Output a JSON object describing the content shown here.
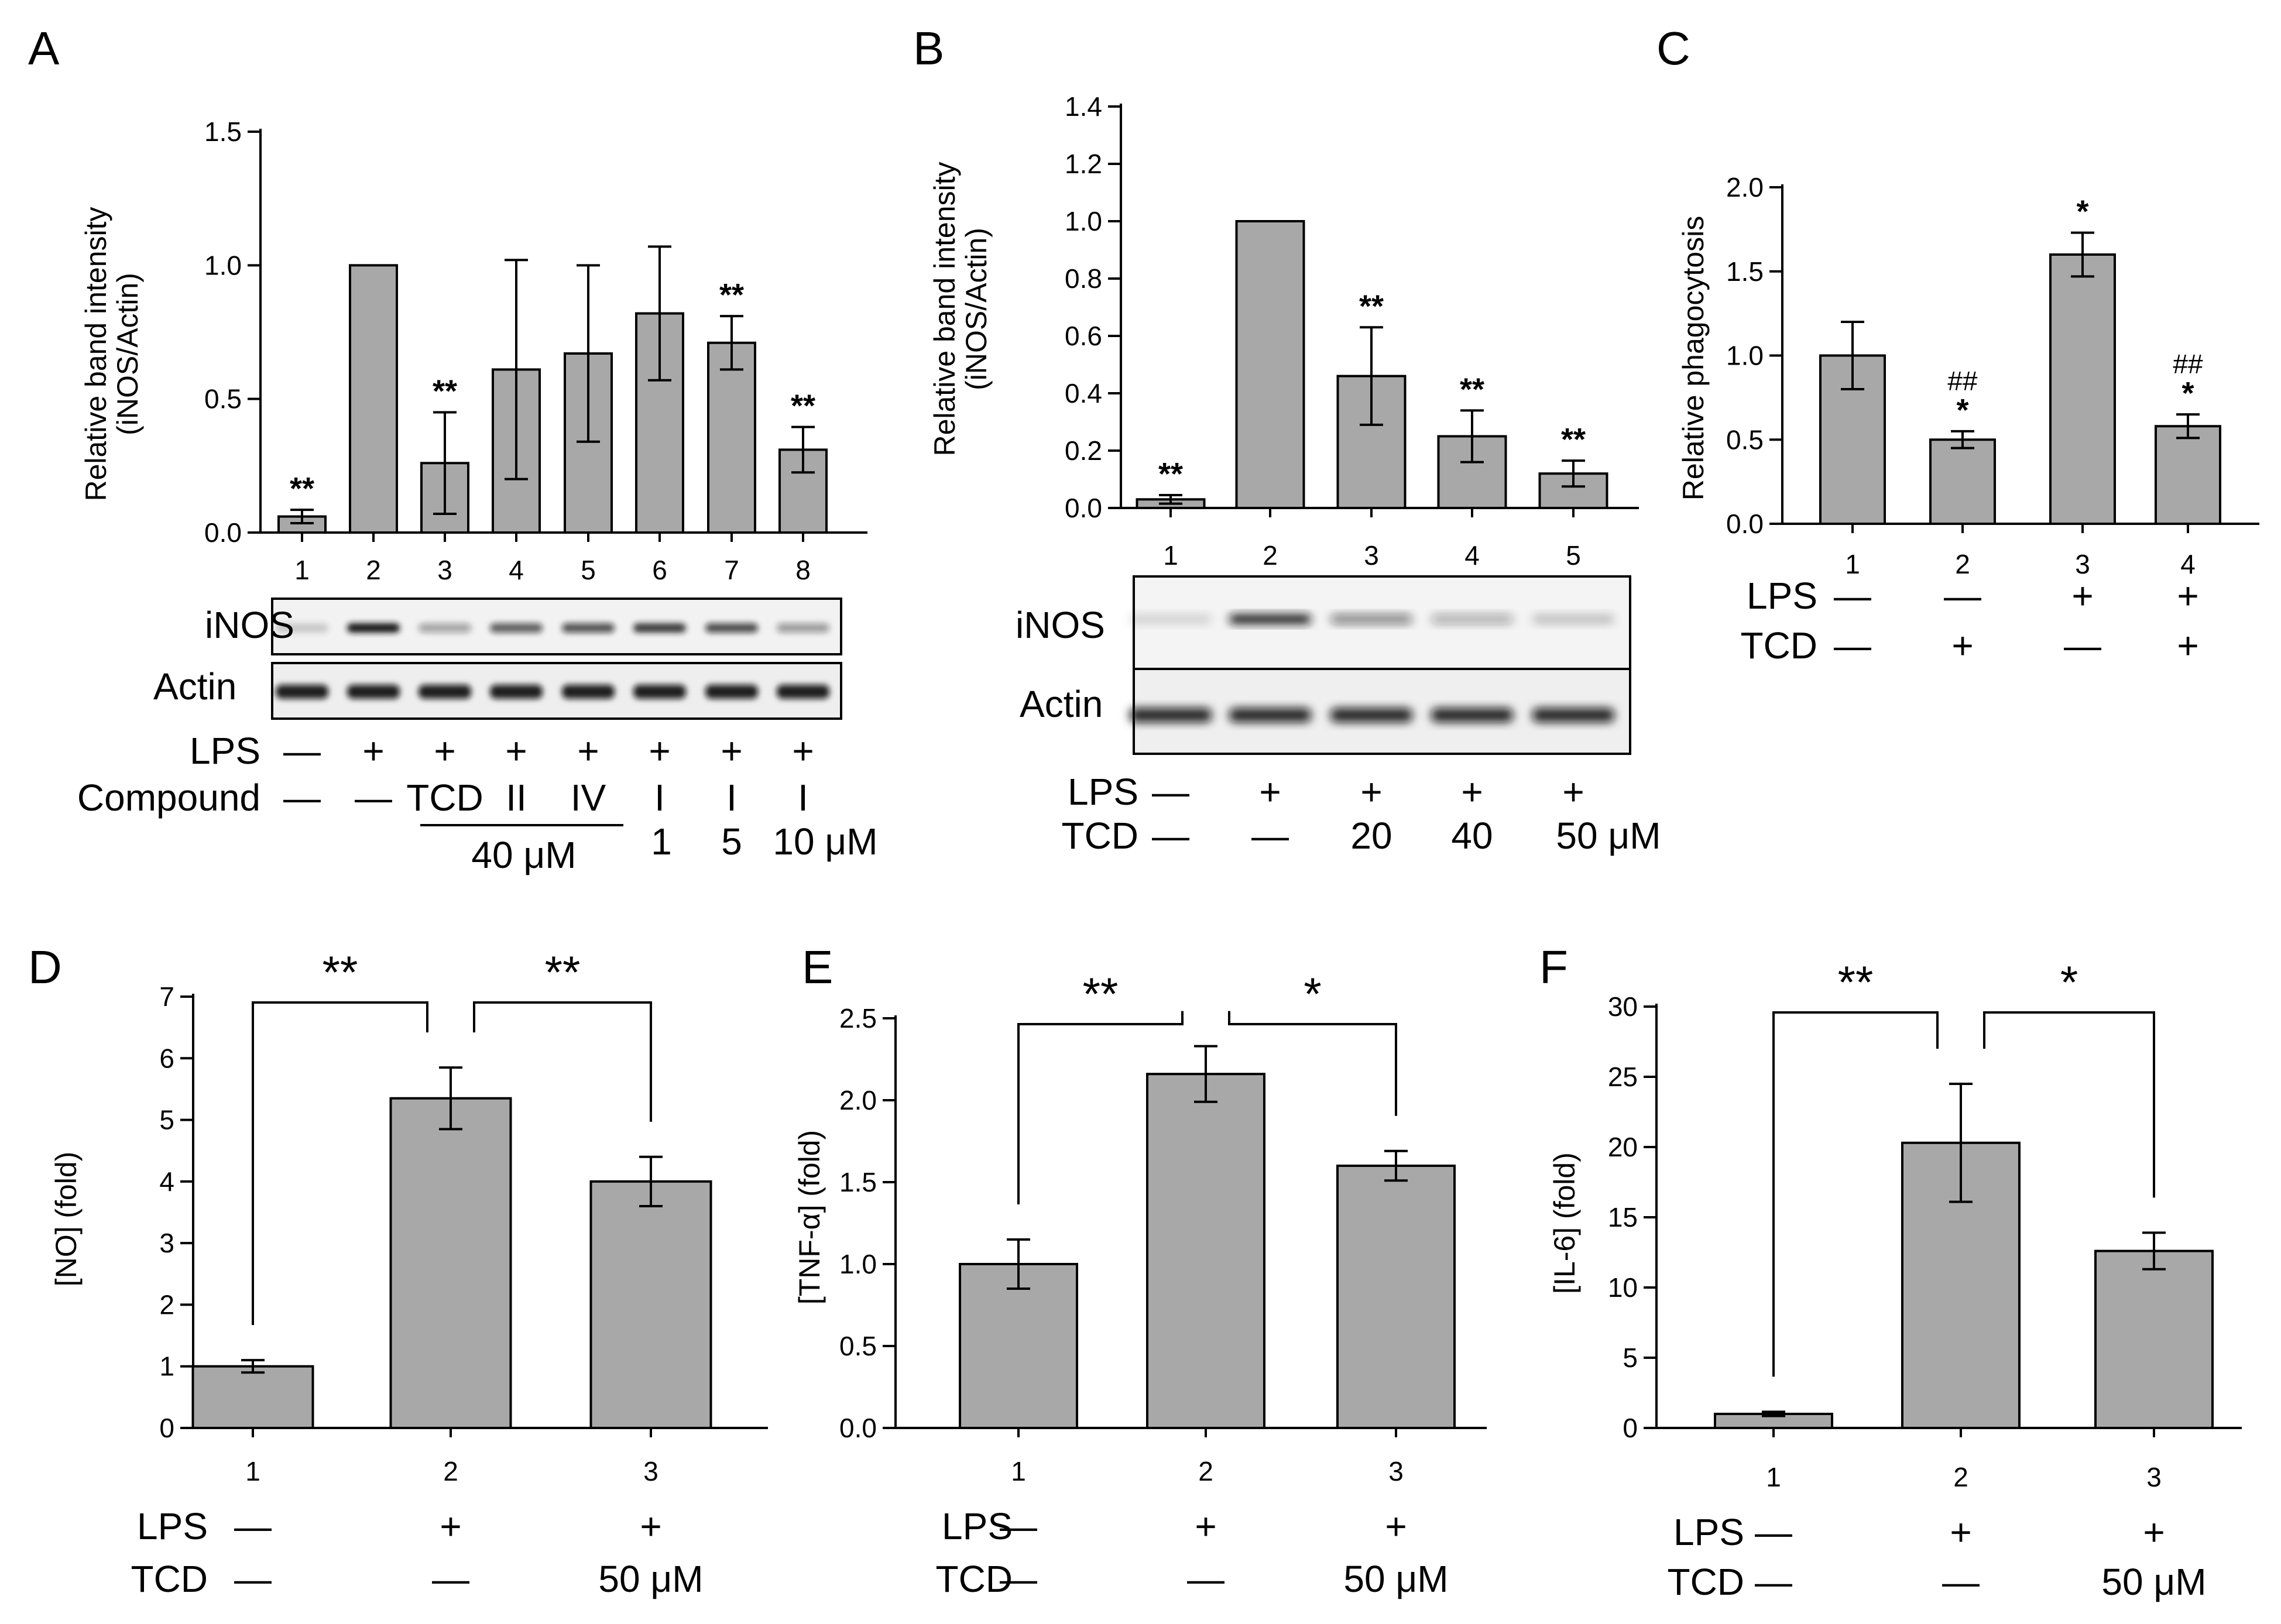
{
  "chart_data": [
    {
      "id": "A",
      "type": "bar",
      "panel_label": "A",
      "ylabel_line1": "Relative band intensity",
      "ylabel_line2": "(iNOS/Actin)",
      "ylim": [
        0,
        1.5
      ],
      "yticks": [
        0.0,
        0.5,
        1.0,
        1.5
      ],
      "ytick_labels": [
        "0.0",
        "0.5",
        "1.0",
        "1.5"
      ],
      "categories": [
        "1",
        "2",
        "3",
        "4",
        "5",
        "6",
        "7",
        "8"
      ],
      "values": [
        0.06,
        1.0,
        0.26,
        0.61,
        0.67,
        0.82,
        0.71,
        0.31
      ],
      "errors": [
        0.025,
        0,
        0.19,
        0.41,
        0.33,
        0.25,
        0.1,
        0.085
      ],
      "annotations": [
        "**",
        "",
        "**",
        "",
        "",
        "",
        "**",
        "**"
      ],
      "blot_labels": [
        "iNOS",
        "Actin"
      ],
      "conditions": [
        {
          "label": "LPS",
          "values": [
            "—",
            "+",
            "+",
            "+",
            "+",
            "+",
            "+",
            "+"
          ]
        },
        {
          "label": "Compound",
          "values": [
            "—",
            "—",
            "TCD",
            "II",
            "IV",
            "I",
            "I",
            "I"
          ]
        }
      ],
      "group_label": "40 μM",
      "dose_labels": [
        "1",
        "5",
        "10 μM"
      ]
    },
    {
      "id": "B",
      "type": "bar",
      "panel_label": "B",
      "ylabel_line1": "Relative band intensity",
      "ylabel_line2": "(iNOS/Actin)",
      "ylim": [
        0,
        1.4
      ],
      "yticks": [
        0.0,
        0.2,
        0.4,
        0.6,
        0.8,
        1.0,
        1.2,
        1.4
      ],
      "ytick_labels": [
        "0.0",
        "0.2",
        "0.4",
        "0.6",
        "0.8",
        "1.0",
        "1.2",
        "1.4"
      ],
      "categories": [
        "1",
        "2",
        "3",
        "4",
        "5"
      ],
      "values": [
        0.03,
        1.0,
        0.46,
        0.25,
        0.12
      ],
      "errors": [
        0.015,
        0,
        0.17,
        0.09,
        0.045
      ],
      "annotations": [
        "**",
        "",
        "**",
        "**",
        "**"
      ],
      "blot_labels": [
        "iNOS",
        "Actin"
      ],
      "conditions": [
        {
          "label": "LPS",
          "values": [
            "—",
            "+",
            "+",
            "+",
            "+"
          ]
        },
        {
          "label": "TCD",
          "values": [
            "—",
            "—",
            "20",
            "40",
            "50 μM"
          ]
        }
      ]
    },
    {
      "id": "C",
      "type": "bar",
      "panel_label": "C",
      "ylabel": "Relative phagocytosis",
      "ylim": [
        0,
        2.0
      ],
      "yticks": [
        0.0,
        0.5,
        1.0,
        1.5,
        2.0
      ],
      "ytick_labels": [
        "0.0",
        "0.5",
        "1.0",
        "1.5",
        "2.0"
      ],
      "categories": [
        "1",
        "2",
        "3",
        "4"
      ],
      "values": [
        1.0,
        0.5,
        1.6,
        0.58
      ],
      "errors": [
        0.2,
        0.05,
        0.13,
        0.07
      ],
      "annotations": [
        "",
        "*",
        "*",
        "*"
      ],
      "hash_annotations": [
        "",
        "##",
        "",
        "##"
      ],
      "conditions": [
        {
          "label": "LPS",
          "values": [
            "—",
            "—",
            "+",
            "+"
          ]
        },
        {
          "label": "TCD",
          "values": [
            "—",
            "+",
            "—",
            "+"
          ]
        }
      ]
    },
    {
      "id": "D",
      "type": "bar",
      "panel_label": "D",
      "ylabel": "[NO] (fold)",
      "ylim": [
        0,
        7
      ],
      "yticks": [
        0,
        1,
        2,
        3,
        4,
        5,
        6,
        7
      ],
      "ytick_labels": [
        "0",
        "1",
        "2",
        "3",
        "4",
        "5",
        "6",
        "7"
      ],
      "categories": [
        "1",
        "2",
        "3"
      ],
      "values": [
        1.0,
        5.35,
        4.0
      ],
      "errors": [
        0.1,
        0.5,
        0.4
      ],
      "significance": [
        "**",
        "**"
      ],
      "conditions": [
        {
          "label": "LPS",
          "values": [
            "—",
            "+",
            "+"
          ]
        },
        {
          "label": "TCD",
          "values": [
            "—",
            "—",
            "50 μM"
          ]
        }
      ]
    },
    {
      "id": "E",
      "type": "bar",
      "panel_label": "E",
      "ylabel": "[TNF-α] (fold)",
      "ylim": [
        0,
        2.5
      ],
      "yticks": [
        0.0,
        0.5,
        1.0,
        1.5,
        2.0,
        2.5
      ],
      "ytick_labels": [
        "0.0",
        "0.5",
        "1.0",
        "1.5",
        "2.0",
        "2.5"
      ],
      "categories": [
        "1",
        "2",
        "3"
      ],
      "values": [
        1.0,
        2.16,
        1.6
      ],
      "errors": [
        0.15,
        0.17,
        0.09
      ],
      "significance": [
        "**",
        "*"
      ],
      "conditions": [
        {
          "label": "LPS",
          "values": [
            "—",
            "+",
            "+"
          ]
        },
        {
          "label": "TCD",
          "values": [
            "—",
            "—",
            "50 μM"
          ]
        }
      ]
    },
    {
      "id": "F",
      "type": "bar",
      "panel_label": "F",
      "ylabel": "[IL-6] (fold)",
      "ylim": [
        0,
        30
      ],
      "yticks": [
        0,
        5,
        10,
        15,
        20,
        25,
        30
      ],
      "ytick_labels": [
        "0",
        "5",
        "10",
        "15",
        "20",
        "25",
        "30"
      ],
      "categories": [
        "1",
        "2",
        "3"
      ],
      "values": [
        1.0,
        20.3,
        12.6
      ],
      "errors": [
        0.15,
        4.2,
        1.3
      ],
      "significance": [
        "**",
        "*"
      ],
      "conditions": [
        {
          "label": "LPS",
          "values": [
            "—",
            "+",
            "+"
          ]
        },
        {
          "label": "TCD",
          "values": [
            "—",
            "—",
            "50 μM"
          ]
        }
      ]
    }
  ]
}
